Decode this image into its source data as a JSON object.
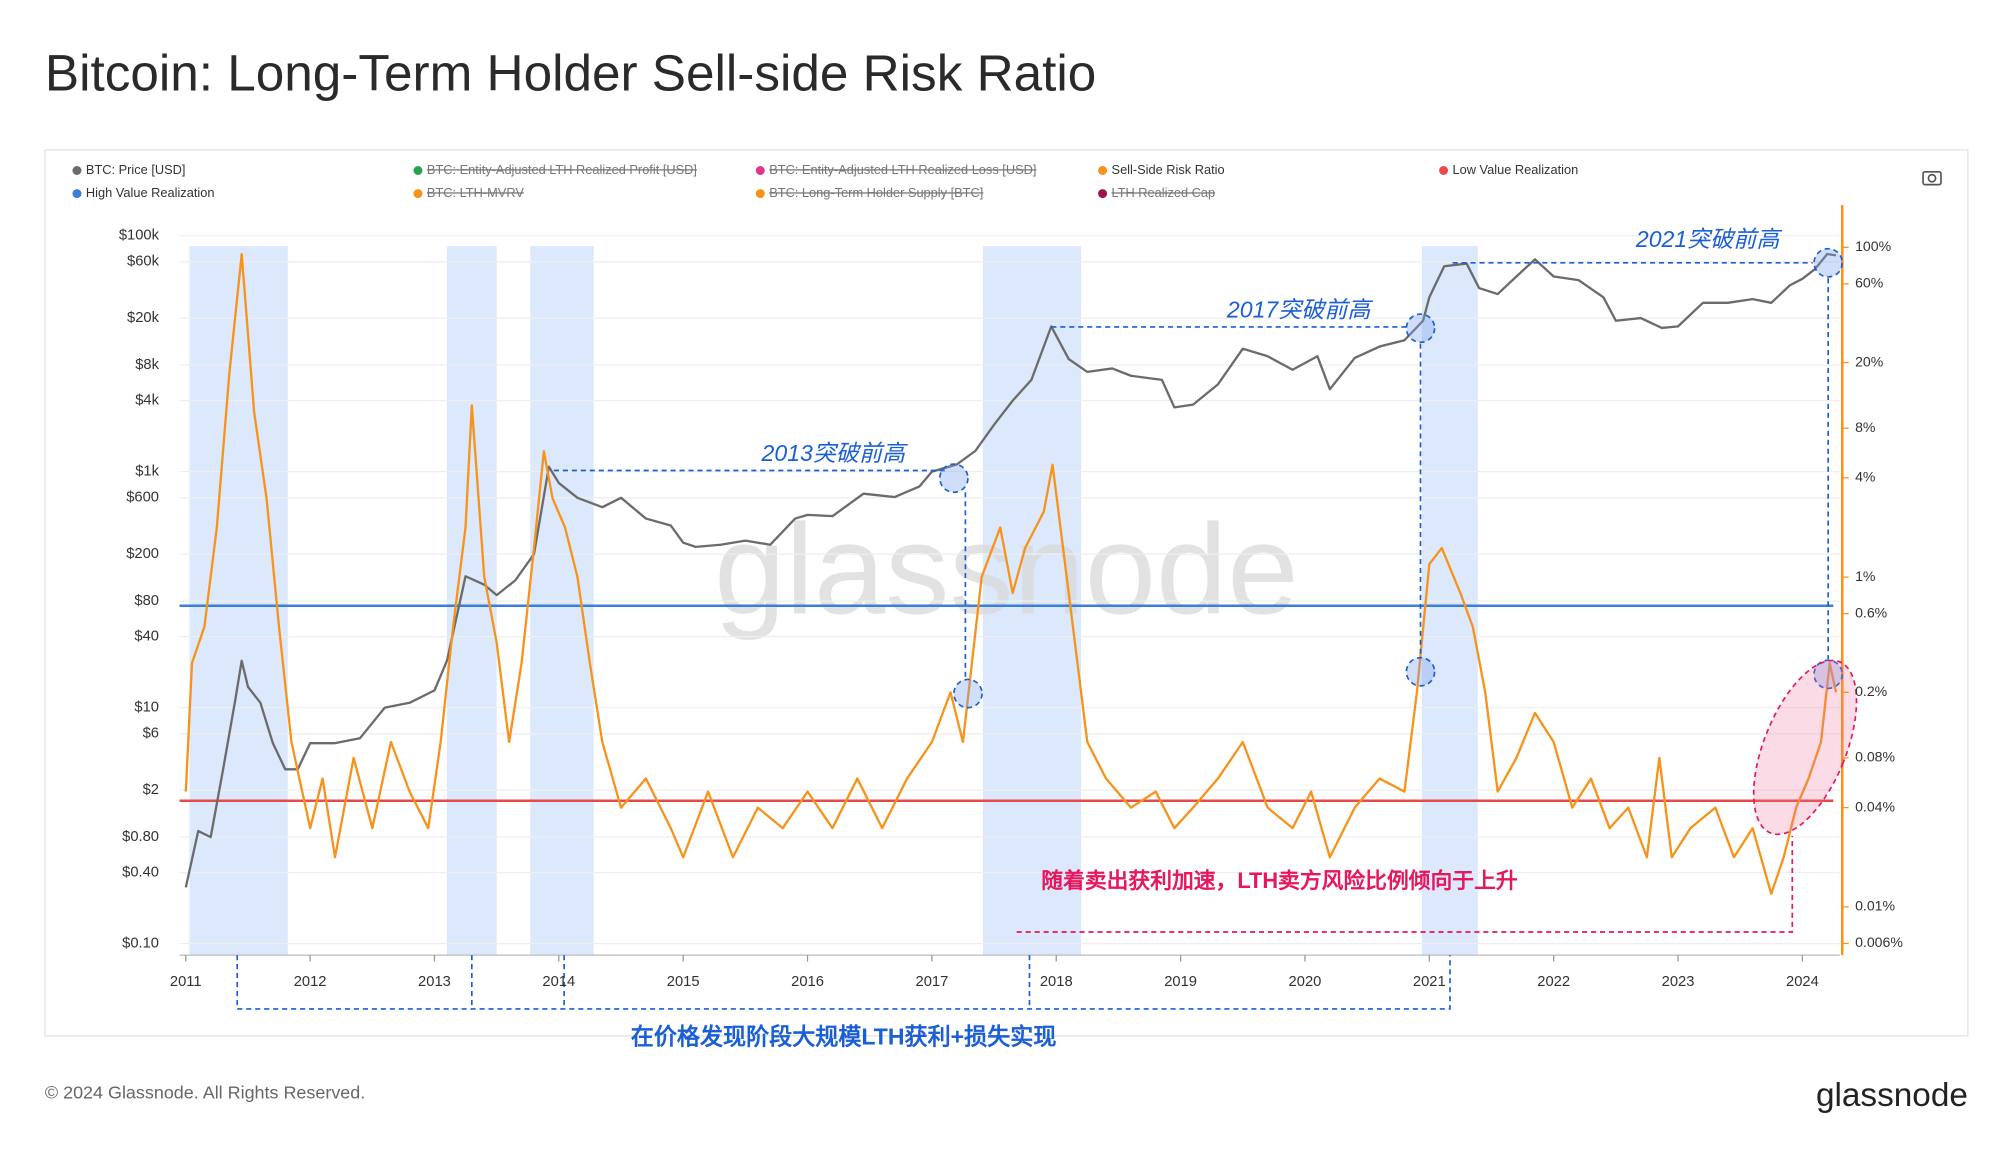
{
  "chart_data": {
    "type": "line",
    "title": "Bitcoin: Long-Term Holder Sell-side Risk Ratio",
    "footer": "© 2024 Glassnode. All Rights Reserved.",
    "brand": "glassnode",
    "watermark": "glassnode",
    "log_scale": true,
    "grid": true,
    "xlim": [
      2010.95,
      2024.3
    ],
    "xticks": [
      2011,
      2012,
      2013,
      2014,
      2015,
      2016,
      2017,
      2018,
      2019,
      2020,
      2021,
      2022,
      2023,
      2024
    ],
    "ylim": [
      0.08,
      110000
    ],
    "yticks": [
      {
        "value": 0.1,
        "label": "$0.10"
      },
      {
        "value": 0.4,
        "label": "$0.40"
      },
      {
        "value": 0.8,
        "label": "$0.80"
      },
      {
        "value": 2,
        "label": "$2"
      },
      {
        "value": 6,
        "label": "$6"
      },
      {
        "value": 10,
        "label": "$10"
      },
      {
        "value": 40,
        "label": "$40"
      },
      {
        "value": 80,
        "label": "$80"
      },
      {
        "value": 200,
        "label": "$200"
      },
      {
        "value": 600,
        "label": "$600"
      },
      {
        "value": 1000,
        "label": "$1k"
      },
      {
        "value": 4000,
        "label": "$4k"
      },
      {
        "value": 8000,
        "label": "$8k"
      },
      {
        "value": 20000,
        "label": "$20k"
      },
      {
        "value": 60000,
        "label": "$60k"
      },
      {
        "value": 100000,
        "label": "$100k"
      }
    ],
    "y2lim": [
      0.0051,
      126
    ],
    "y2ticks": [
      {
        "value": 0.006,
        "label": "0.006%"
      },
      {
        "value": 0.01,
        "label": "0.01%"
      },
      {
        "value": 0.04,
        "label": "0.04%"
      },
      {
        "value": 0.08,
        "label": "0.08%"
      },
      {
        "value": 0.2,
        "label": "0.2%"
      },
      {
        "value": 0.6,
        "label": "0.6%"
      },
      {
        "value": 1,
        "label": "1%"
      },
      {
        "value": 4,
        "label": "4%"
      },
      {
        "value": 8,
        "label": "8%"
      },
      {
        "value": 20,
        "label": "20%"
      },
      {
        "value": 60,
        "label": "60%"
      },
      {
        "value": 100,
        "label": "100%"
      }
    ],
    "series": [
      {
        "name": "BTC: Price [USD]",
        "color": "#6b6b6b",
        "axis": "y",
        "x": [
          2011.0,
          2011.1,
          2011.2,
          2011.3,
          2011.4,
          2011.45,
          2011.5,
          2011.6,
          2011.7,
          2011.8,
          2011.9,
          2012.0,
          2012.2,
          2012.4,
          2012.6,
          2012.8,
          2013.0,
          2013.1,
          2013.25,
          2013.4,
          2013.5,
          2013.65,
          2013.8,
          2013.92,
          2014.0,
          2014.15,
          2014.35,
          2014.5,
          2014.7,
          2014.9,
          2015.0,
          2015.1,
          2015.3,
          2015.5,
          2015.7,
          2015.9,
          2016.0,
          2016.2,
          2016.45,
          2016.7,
          2016.9,
          2017.0,
          2017.2,
          2017.35,
          2017.5,
          2017.65,
          2017.8,
          2017.96,
          2018.1,
          2018.25,
          2018.45,
          2018.6,
          2018.85,
          2018.95,
          2019.1,
          2019.3,
          2019.5,
          2019.7,
          2019.9,
          2020.1,
          2020.2,
          2020.4,
          2020.6,
          2020.8,
          2020.95,
          2021.0,
          2021.12,
          2021.3,
          2021.4,
          2021.55,
          2021.7,
          2021.85,
          2022.0,
          2022.2,
          2022.4,
          2022.5,
          2022.7,
          2022.87,
          2023.0,
          2023.2,
          2023.4,
          2023.6,
          2023.75,
          2023.9,
          2024.0,
          2024.1,
          2024.2,
          2024.27
        ],
        "values": [
          0.3,
          0.9,
          0.8,
          3,
          12,
          25,
          15,
          11,
          5,
          3,
          3,
          5,
          5,
          5.5,
          10,
          11,
          14,
          25,
          130,
          110,
          90,
          120,
          200,
          1100,
          800,
          600,
          500,
          600,
          400,
          350,
          250,
          230,
          240,
          260,
          240,
          400,
          430,
          420,
          650,
          610,
          750,
          1000,
          1150,
          1500,
          2500,
          4000,
          6000,
          17000,
          9000,
          7000,
          7500,
          6500,
          6000,
          3500,
          3700,
          5500,
          11000,
          9500,
          7300,
          9500,
          5000,
          9200,
          11500,
          13000,
          19000,
          30000,
          55000,
          58000,
          36000,
          32000,
          45000,
          63000,
          45000,
          42000,
          30000,
          19000,
          20000,
          16500,
          17000,
          27000,
          27000,
          29000,
          27000,
          38000,
          43000,
          52000,
          70000,
          68000
        ]
      },
      {
        "name": "Sell-Side Risk Ratio",
        "color": "#f7931a",
        "axis": "y2",
        "x": [
          2011.0,
          2011.05,
          2011.15,
          2011.25,
          2011.35,
          2011.45,
          2011.55,
          2011.65,
          2011.75,
          2011.85,
          2012.0,
          2012.1,
          2012.2,
          2012.35,
          2012.5,
          2012.65,
          2012.8,
          2012.95,
          2013.05,
          2013.15,
          2013.25,
          2013.3,
          2013.4,
          2013.5,
          2013.6,
          2013.7,
          2013.8,
          2013.88,
          2013.95,
          2014.05,
          2014.15,
          2014.25,
          2014.35,
          2014.5,
          2014.7,
          2014.9,
          2015.0,
          2015.2,
          2015.4,
          2015.6,
          2015.8,
          2016.0,
          2016.2,
          2016.4,
          2016.6,
          2016.8,
          2017.0,
          2017.15,
          2017.25,
          2017.4,
          2017.55,
          2017.65,
          2017.75,
          2017.9,
          2017.97,
          2018.1,
          2018.25,
          2018.4,
          2018.6,
          2018.8,
          2018.95,
          2019.1,
          2019.3,
          2019.5,
          2019.7,
          2019.9,
          2020.05,
          2020.2,
          2020.4,
          2020.6,
          2020.8,
          2020.9,
          2021.0,
          2021.1,
          2021.25,
          2021.35,
          2021.45,
          2021.55,
          2021.7,
          2021.85,
          2022.0,
          2022.15,
          2022.3,
          2022.45,
          2022.6,
          2022.75,
          2022.85,
          2022.95,
          2023.1,
          2023.3,
          2023.45,
          2023.6,
          2023.75,
          2023.85,
          2023.95,
          2024.05,
          2024.15,
          2024.22,
          2024.27
        ],
        "values": [
          0.05,
          0.3,
          0.5,
          2,
          17,
          91,
          10,
          3,
          0.5,
          0.1,
          0.03,
          0.06,
          0.02,
          0.08,
          0.03,
          0.1,
          0.05,
          0.03,
          0.1,
          0.5,
          2,
          11,
          1,
          0.4,
          0.1,
          0.3,
          1.5,
          5.8,
          3,
          2,
          1,
          0.3,
          0.1,
          0.04,
          0.06,
          0.03,
          0.02,
          0.05,
          0.02,
          0.04,
          0.03,
          0.05,
          0.03,
          0.06,
          0.03,
          0.06,
          0.1,
          0.2,
          0.1,
          1,
          2,
          0.8,
          1.5,
          2.5,
          4.8,
          0.8,
          0.1,
          0.06,
          0.04,
          0.05,
          0.03,
          0.04,
          0.06,
          0.1,
          0.04,
          0.03,
          0.05,
          0.02,
          0.04,
          0.06,
          0.05,
          0.2,
          1.2,
          1.5,
          0.8,
          0.5,
          0.2,
          0.05,
          0.08,
          0.15,
          0.1,
          0.04,
          0.06,
          0.03,
          0.04,
          0.02,
          0.08,
          0.02,
          0.03,
          0.04,
          0.02,
          0.03,
          0.012,
          0.02,
          0.04,
          0.06,
          0.1,
          0.3,
          0.2
        ]
      }
    ],
    "reference_lines": [
      {
        "name": "Low Value Realization",
        "color": "#e84a4a",
        "axis": "y2",
        "value": 0.044
      },
      {
        "name": "High Value Realization",
        "color": "#3a7fd9",
        "axis": "y2",
        "value": 0.67
      }
    ],
    "inactive_legend": [
      {
        "name": "BTC: Entity-Adjusted LTH Realized Profit [USD]",
        "color": "#2aa14a"
      },
      {
        "name": "BTC: Entity-Adjusted LTH Realized Loss [USD]",
        "color": "#e0378c"
      },
      {
        "name": "BTC: LTH-MVRV",
        "color": "#f7931a"
      },
      {
        "name": "BTC: Long-Term Holder Supply [BTC]",
        "color": "#f7931a"
      },
      {
        "name": "LTH Realized Cap",
        "color": "#a0134f"
      }
    ],
    "bands": [
      [
        2011.03,
        2011.82
      ],
      [
        2013.1,
        2013.5
      ],
      [
        2013.77,
        2014.28
      ],
      [
        2017.41,
        2018.2
      ],
      [
        2020.94,
        2021.39
      ]
    ],
    "annotations": [
      "2013突破前高",
      "2017突破前高",
      "2021突破前高",
      "随着卖出获利加速，LTH卖方风险比例倾向于上升",
      "在价格发现阶段大规模LTH获利+损失实现"
    ]
  }
}
